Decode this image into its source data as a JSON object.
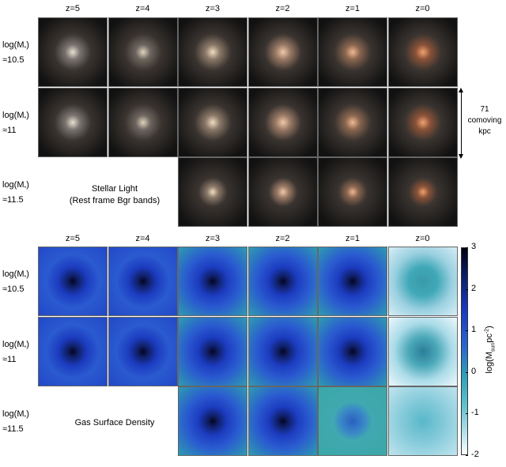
{
  "stellar": {
    "columns": [
      "z=5",
      "z=4",
      "z=3",
      "z=2",
      "z=1",
      "z=0"
    ],
    "rows": [
      {
        "label": "log(M",
        "sub": "*",
        "close": ")",
        "mass": "≈10.5"
      },
      {
        "label": "log(M",
        "sub": "*",
        "close": ")",
        "mass": "≈11"
      },
      {
        "label": "log(M",
        "sub": "*",
        "close": ")",
        "mass": "≈11.5"
      }
    ],
    "caption_line1": "Stellar Light",
    "caption_line2": "(Rest frame Bgr bands)",
    "scale_bar": {
      "line1": "71",
      "line2": "comoving",
      "line3": "kpc"
    }
  },
  "gas": {
    "columns": [
      "z=5",
      "z=4",
      "z=3",
      "z=2",
      "z=1",
      "z=0"
    ],
    "rows": [
      {
        "label": "log(M",
        "sub": "*",
        "close": ")",
        "mass": "≈10.5"
      },
      {
        "label": "log(M",
        "sub": "*",
        "close": ")",
        "mass": "≈11"
      },
      {
        "label": "log(M",
        "sub": "*",
        "close": ")",
        "mass": "≈11.5"
      }
    ],
    "caption": "Gas Surface Density",
    "colorbar": {
      "ticks": [
        "3",
        "2",
        "1",
        "0",
        "-1",
        "-2"
      ],
      "label_pre": "log(M",
      "label_sub": "sun",
      "label_mid": "pc",
      "label_sup": "-2",
      "label_post": ")"
    }
  }
}
